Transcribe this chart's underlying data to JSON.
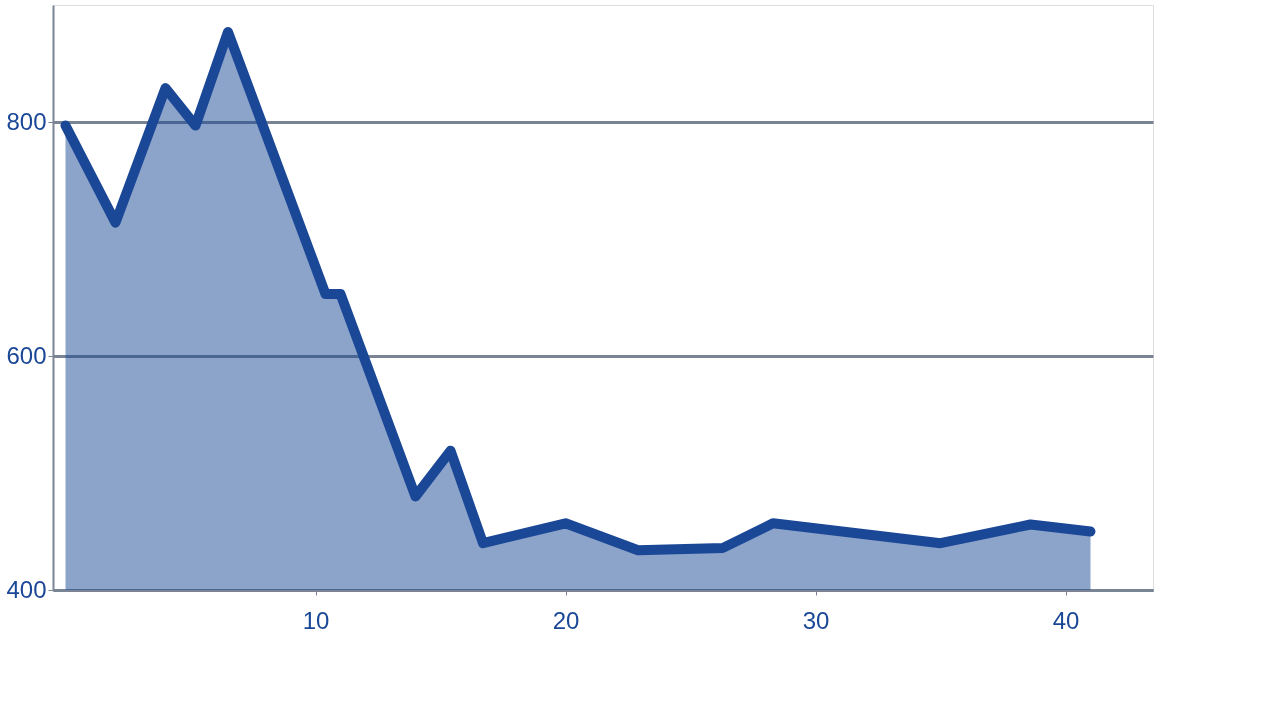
{
  "chart_data": {
    "type": "area",
    "x": [
      0,
      2,
      4,
      5.2,
      6.5,
      10.4,
      11,
      14,
      15.4,
      16.7,
      20,
      22.9,
      26.3,
      28.3,
      35,
      38.6,
      41
    ],
    "series": [
      {
        "color": "#1a4796",
        "values": [
          797,
          714,
          829,
          797,
          877,
          653,
          653,
          480,
          519,
          440,
          457,
          434,
          436,
          457,
          440,
          456,
          450
        ]
      }
    ],
    "xlim": [
      -0.5,
      43.5
    ],
    "ylim": [
      400,
      900
    ],
    "xticks": [
      10,
      20,
      30,
      40
    ],
    "yticks": [
      400,
      600,
      800
    ],
    "grid": "y",
    "marker": "none",
    "line_style": "solid"
  }
}
